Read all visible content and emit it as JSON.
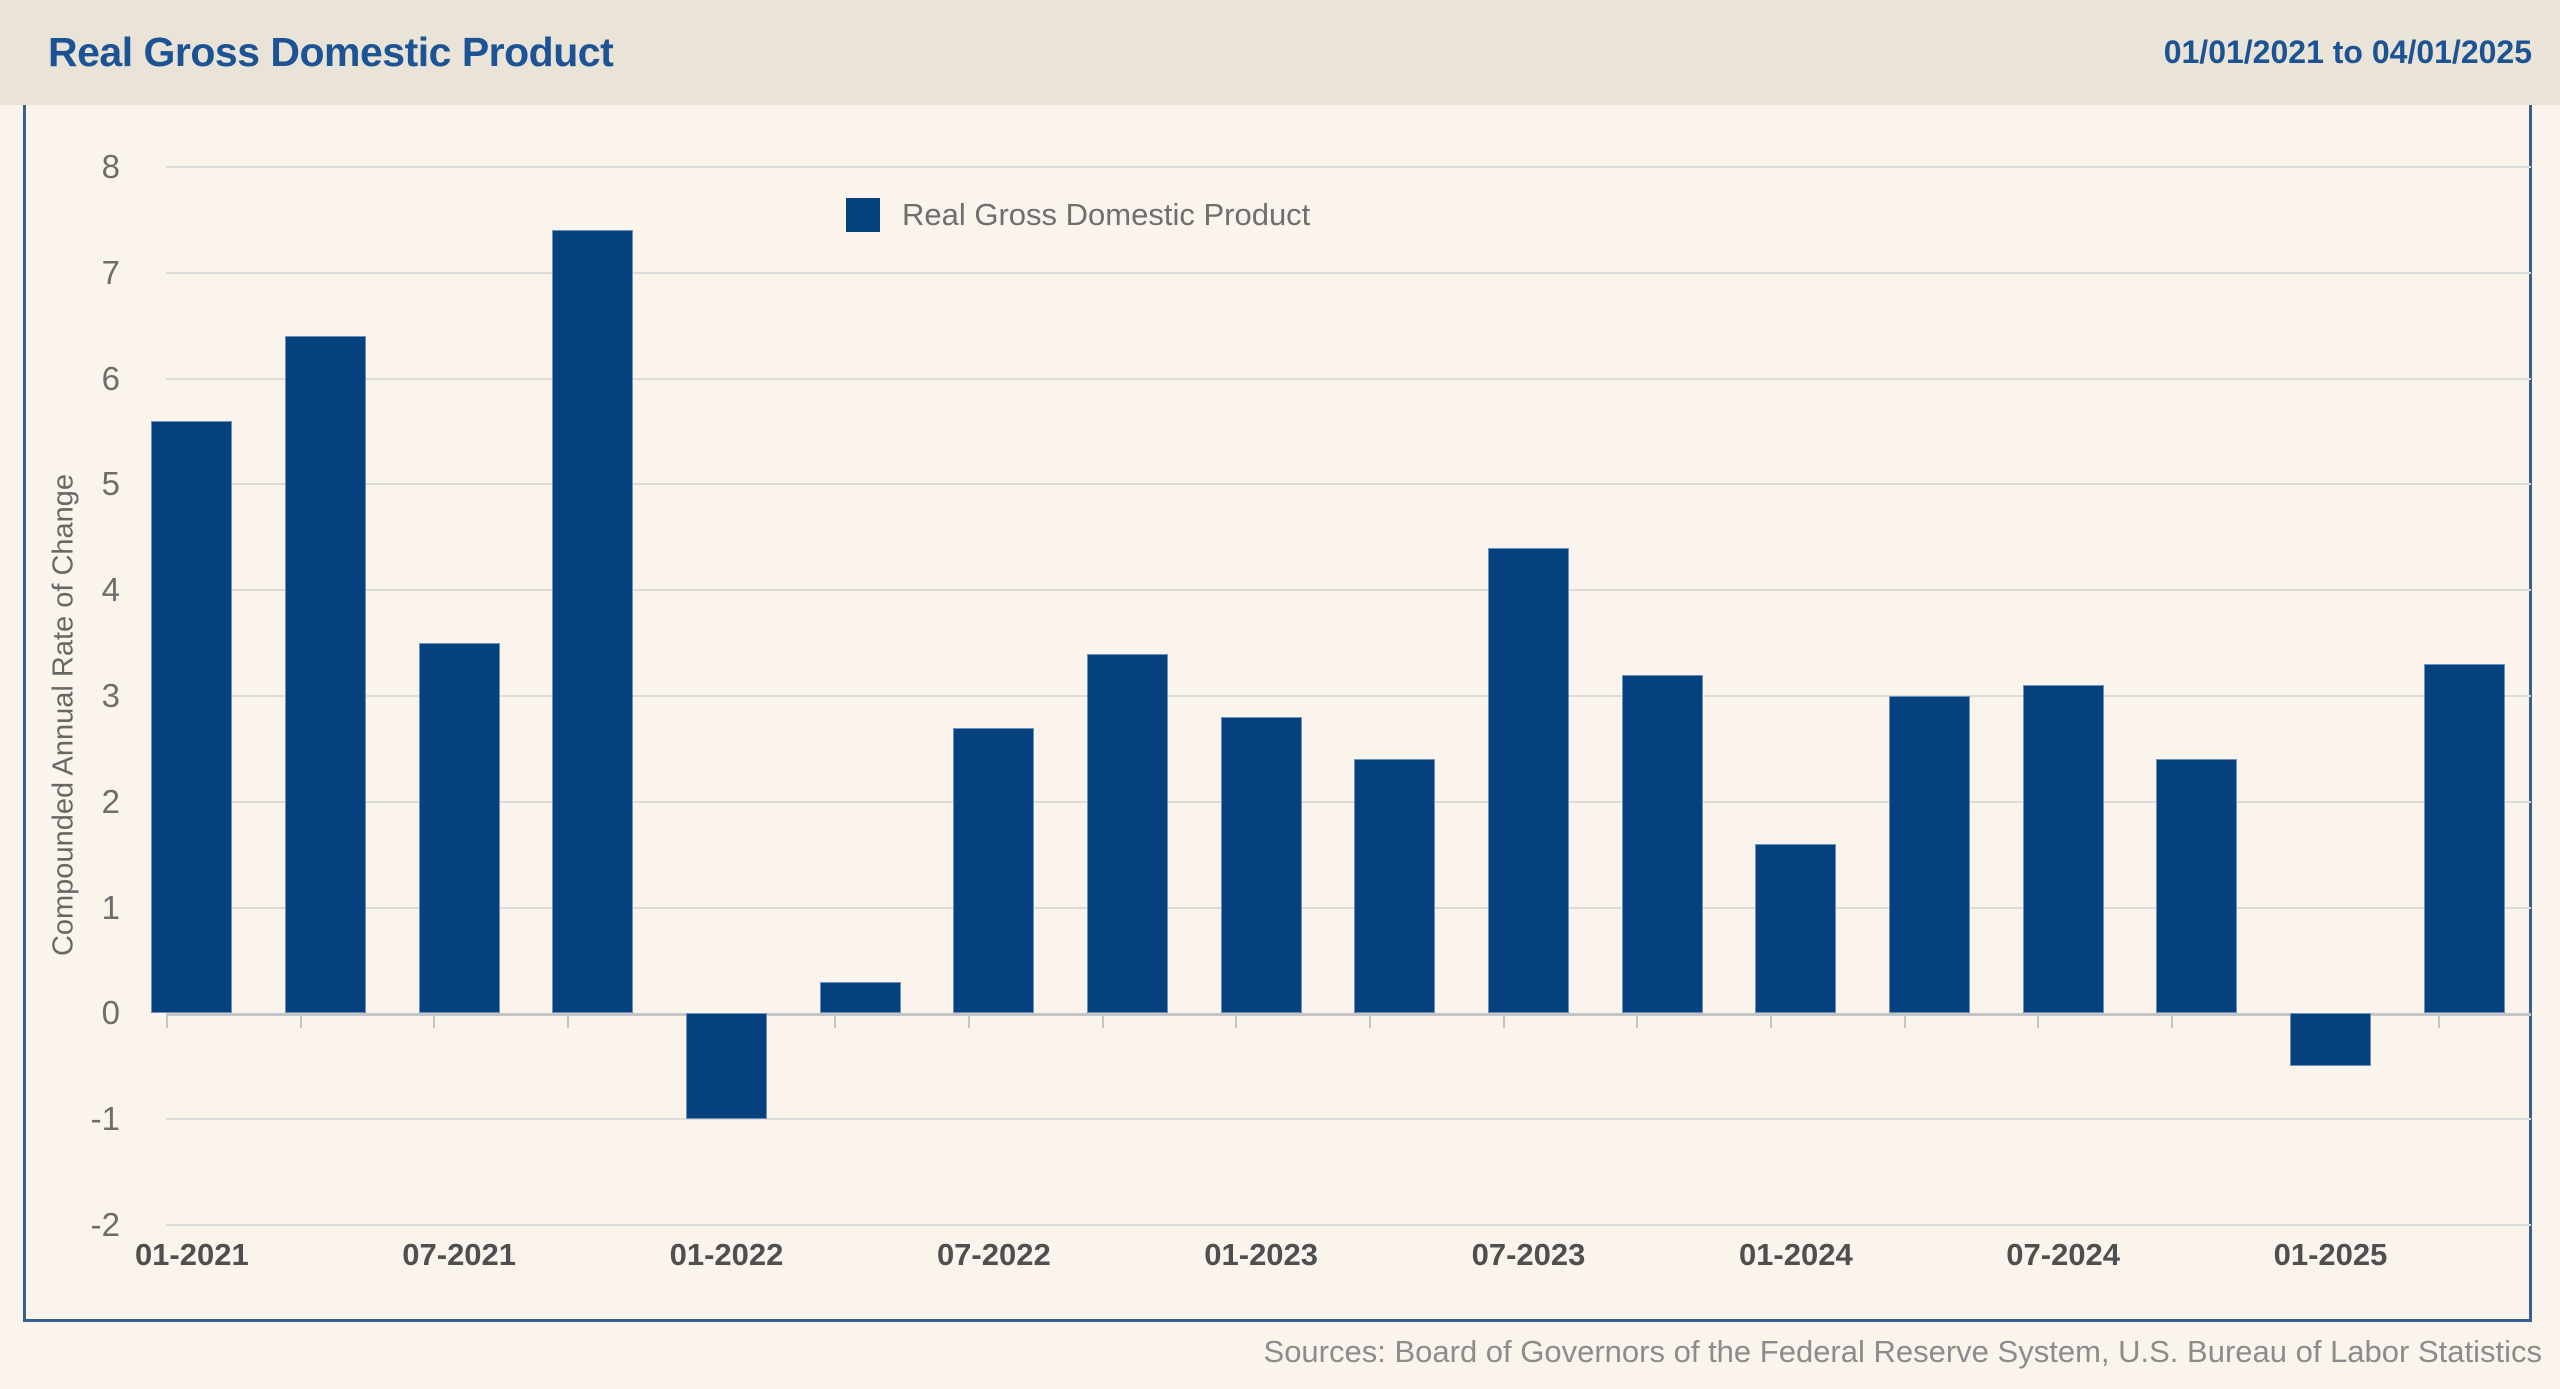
{
  "header": {
    "title": "Real Gross Domestic Product",
    "date_range": "01/01/2021 to 04/01/2025"
  },
  "legend": {
    "label": "Real Gross Domestic Product"
  },
  "y_axis": {
    "title": "Compounded Annual Rate of Change",
    "ticks": [
      8,
      7,
      6,
      5,
      4,
      3,
      2,
      1,
      0,
      -1,
      -2
    ]
  },
  "x_axis": {
    "tick_labels": [
      "01-2021",
      "07-2021",
      "01-2022",
      "07-2022",
      "01-2023",
      "07-2023",
      "01-2024",
      "07-2024",
      "01-2025"
    ]
  },
  "footer": {
    "sources": "Sources: Board of Governors of the Federal Reserve System, U.S. Bureau of Labor Statistics"
  },
  "colors": {
    "bar": "#05417E",
    "bar_border": "#6F93B8",
    "accent_blue": "#1C5394",
    "panel_border": "#356090",
    "header_bg": "#EAE3D8",
    "page_bg": "#FAF4ED",
    "gridline": "#DCDCDA",
    "axis_line": "#C3C5C7"
  },
  "chart_data": {
    "type": "bar",
    "title": "Real Gross Domestic Product",
    "categories": [
      "01-2021",
      "04-2021",
      "07-2021",
      "10-2021",
      "01-2022",
      "04-2022",
      "07-2022",
      "10-2022",
      "01-2023",
      "04-2023",
      "07-2023",
      "10-2023",
      "01-2024",
      "04-2024",
      "07-2024",
      "10-2024",
      "01-2025",
      "04-2025"
    ],
    "values": [
      5.6,
      6.4,
      3.5,
      7.4,
      -1.0,
      0.3,
      2.7,
      3.4,
      2.8,
      2.4,
      4.4,
      3.2,
      1.6,
      3.0,
      3.1,
      2.4,
      -0.5,
      3.3
    ],
    "xlabel": "",
    "ylabel": "Compounded Annual Rate of Change",
    "ylim": [
      -2,
      8
    ],
    "grid": true,
    "legend_position": "top-center",
    "x_tick_every": 2
  }
}
